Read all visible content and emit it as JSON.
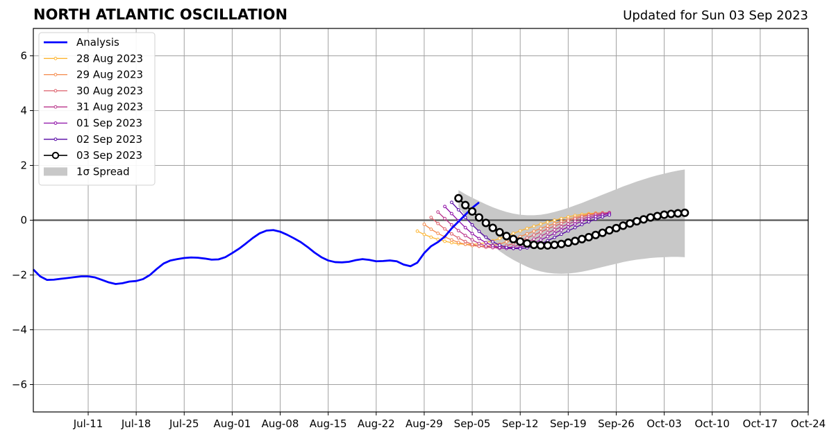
{
  "chart_data": {
    "type": "line",
    "title": "NORTH ATLANTIC OSCILLATION",
    "subtitle": "Updated for Sun 03 Sep 2023",
    "xlabel": "",
    "ylabel": "",
    "xlim": [
      "2023-07-03",
      "2023-10-24"
    ],
    "ylim": [
      -7,
      7
    ],
    "grid": true,
    "legend_position": "top-left",
    "x_ticks": [
      "Jul-11",
      "Jul-18",
      "Jul-25",
      "Aug-01",
      "Aug-08",
      "Aug-15",
      "Aug-22",
      "Aug-29",
      "Sep-05",
      "Sep-12",
      "Sep-19",
      "Sep-26",
      "Oct-03",
      "Oct-10",
      "Oct-17",
      "Oct-24"
    ],
    "x_tick_dates": [
      "2023-07-11",
      "2023-07-18",
      "2023-07-25",
      "2023-08-01",
      "2023-08-08",
      "2023-08-15",
      "2023-08-22",
      "2023-08-29",
      "2023-09-05",
      "2023-09-12",
      "2023-09-19",
      "2023-09-26",
      "2023-10-03",
      "2023-10-10",
      "2023-10-17",
      "2023-10-24"
    ],
    "y_ticks": [
      6,
      4,
      2,
      0,
      -2,
      -4,
      -6
    ],
    "y_tick_labels": [
      "6",
      "4",
      "2",
      "0",
      "−2",
      "−4",
      "−6"
    ],
    "analysis": {
      "name": "Analysis",
      "color": "#0000ff",
      "start_date": "2023-07-03",
      "values": [
        -1.8,
        -2.05,
        -2.18,
        -2.17,
        -2.14,
        -2.11,
        -2.08,
        -2.05,
        -2.05,
        -2.09,
        -2.18,
        -2.27,
        -2.33,
        -2.3,
        -2.24,
        -2.22,
        -2.15,
        -2.0,
        -1.78,
        -1.58,
        -1.47,
        -1.42,
        -1.38,
        -1.36,
        -1.37,
        -1.4,
        -1.44,
        -1.43,
        -1.35,
        -1.2,
        -1.04,
        -0.85,
        -0.65,
        -0.48,
        -0.38,
        -0.36,
        -0.42,
        -0.53,
        -0.66,
        -0.8,
        -0.98,
        -1.18,
        -1.35,
        -1.47,
        -1.53,
        -1.54,
        -1.52,
        -1.46,
        -1.42,
        -1.45,
        -1.5,
        -1.49,
        -1.47,
        -1.5,
        -1.62,
        -1.68,
        -1.55,
        -1.2,
        -0.95,
        -0.8,
        -0.6,
        -0.3,
        -0.05,
        0.2,
        0.45,
        0.65
      ]
    },
    "forecasts": [
      {
        "name": "28 Aug 2023",
        "color": "#fdb42f",
        "start_date": "2023-08-28",
        "values": [
          -0.4,
          -0.52,
          -0.62,
          -0.7,
          -0.77,
          -0.82,
          -0.86,
          -0.88,
          -0.88,
          -0.86,
          -0.82,
          -0.75,
          -0.67,
          -0.58,
          -0.48,
          -0.39,
          -0.3,
          -0.22,
          -0.14,
          -0.07,
          0.0,
          0.06,
          0.12,
          0.17,
          0.21,
          0.24,
          0.26
        ]
      },
      {
        "name": "29 Aug 2023",
        "color": "#f48849",
        "start_date": "2023-08-29",
        "values": [
          -0.15,
          -0.33,
          -0.48,
          -0.61,
          -0.72,
          -0.81,
          -0.88,
          -0.93,
          -0.95,
          -0.95,
          -0.92,
          -0.87,
          -0.79,
          -0.7,
          -0.6,
          -0.5,
          -0.4,
          -0.3,
          -0.21,
          -0.12,
          -0.04,
          0.03,
          0.1,
          0.16,
          0.21,
          0.25,
          0.27
        ]
      },
      {
        "name": "30 Aug 2023",
        "color": "#db5c68",
        "start_date": "2023-08-30",
        "values": [
          0.1,
          -0.12,
          -0.32,
          -0.5,
          -0.65,
          -0.78,
          -0.88,
          -0.95,
          -0.99,
          -1.0,
          -0.98,
          -0.93,
          -0.85,
          -0.76,
          -0.65,
          -0.54,
          -0.43,
          -0.32,
          -0.22,
          -0.12,
          -0.03,
          0.05,
          0.12,
          0.18,
          0.23,
          0.26,
          0.28
        ]
      },
      {
        "name": "31 Aug 2023",
        "color": "#b83289",
        "start_date": "2023-08-31",
        "values": [
          0.3,
          0.06,
          -0.17,
          -0.38,
          -0.56,
          -0.72,
          -0.85,
          -0.94,
          -1.0,
          -1.02,
          -1.01,
          -0.97,
          -0.89,
          -0.8,
          -0.69,
          -0.58,
          -0.46,
          -0.35,
          -0.24,
          -0.14,
          -0.04,
          0.04,
          0.12,
          0.18,
          0.23,
          0.27
        ]
      },
      {
        "name": "01 Sep 2023",
        "color": "#8b0aa5",
        "start_date": "2023-09-01",
        "values": [
          0.5,
          0.24,
          -0.02,
          -0.27,
          -0.49,
          -0.67,
          -0.82,
          -0.93,
          -1.0,
          -1.03,
          -1.03,
          -0.99,
          -0.92,
          -0.83,
          -0.72,
          -0.6,
          -0.48,
          -0.36,
          -0.25,
          -0.14,
          -0.04,
          0.05,
          0.13,
          0.19,
          0.24
        ]
      },
      {
        "name": "02 Sep 2023",
        "color": "#5302a3",
        "start_date": "2023-09-02",
        "values": [
          0.65,
          0.38,
          0.1,
          -0.17,
          -0.41,
          -0.62,
          -0.79,
          -0.91,
          -0.99,
          -1.03,
          -1.04,
          -1.01,
          -0.95,
          -0.86,
          -0.75,
          -0.63,
          -0.51,
          -0.39,
          -0.27,
          -0.16,
          -0.06,
          0.04,
          0.12,
          0.19
        ]
      }
    ],
    "latest": {
      "name": "03 Sep 2023",
      "color": "#000000",
      "start_date": "2023-09-03",
      "values": [
        0.8,
        0.55,
        0.32,
        0.1,
        -0.1,
        -0.28,
        -0.44,
        -0.58,
        -0.69,
        -0.78,
        -0.85,
        -0.9,
        -0.92,
        -0.92,
        -0.9,
        -0.87,
        -0.82,
        -0.76,
        -0.69,
        -0.62,
        -0.54,
        -0.46,
        -0.37,
        -0.29,
        -0.2,
        -0.12,
        -0.04,
        0.03,
        0.1,
        0.15,
        0.2,
        0.23,
        0.25,
        0.27
      ]
    },
    "spread": {
      "name": "1σ Spread",
      "color": "#c8c8c8",
      "start_date": "2023-09-03",
      "upper": [
        1.1,
        0.95,
        0.82,
        0.7,
        0.58,
        0.47,
        0.38,
        0.3,
        0.24,
        0.2,
        0.18,
        0.18,
        0.2,
        0.24,
        0.3,
        0.37,
        0.45,
        0.54,
        0.63,
        0.73,
        0.83,
        0.93,
        1.03,
        1.13,
        1.23,
        1.32,
        1.41,
        1.49,
        1.57,
        1.64,
        1.7,
        1.76,
        1.81,
        1.85
      ],
      "lower": [
        0.5,
        0.15,
        -0.17,
        -0.45,
        -0.7,
        -0.93,
        -1.13,
        -1.3,
        -1.45,
        -1.58,
        -1.7,
        -1.8,
        -1.87,
        -1.92,
        -1.95,
        -1.96,
        -1.95,
        -1.92,
        -1.88,
        -1.83,
        -1.77,
        -1.71,
        -1.65,
        -1.59,
        -1.53,
        -1.48,
        -1.44,
        -1.41,
        -1.38,
        -1.36,
        -1.35,
        -1.34,
        -1.34,
        -1.35
      ]
    },
    "legend": [
      "Analysis",
      "28 Aug 2023",
      "29 Aug 2023",
      "30 Aug 2023",
      "31 Aug 2023",
      "01 Sep 2023",
      "02 Sep 2023",
      "03 Sep 2023",
      "1σ Spread"
    ]
  }
}
